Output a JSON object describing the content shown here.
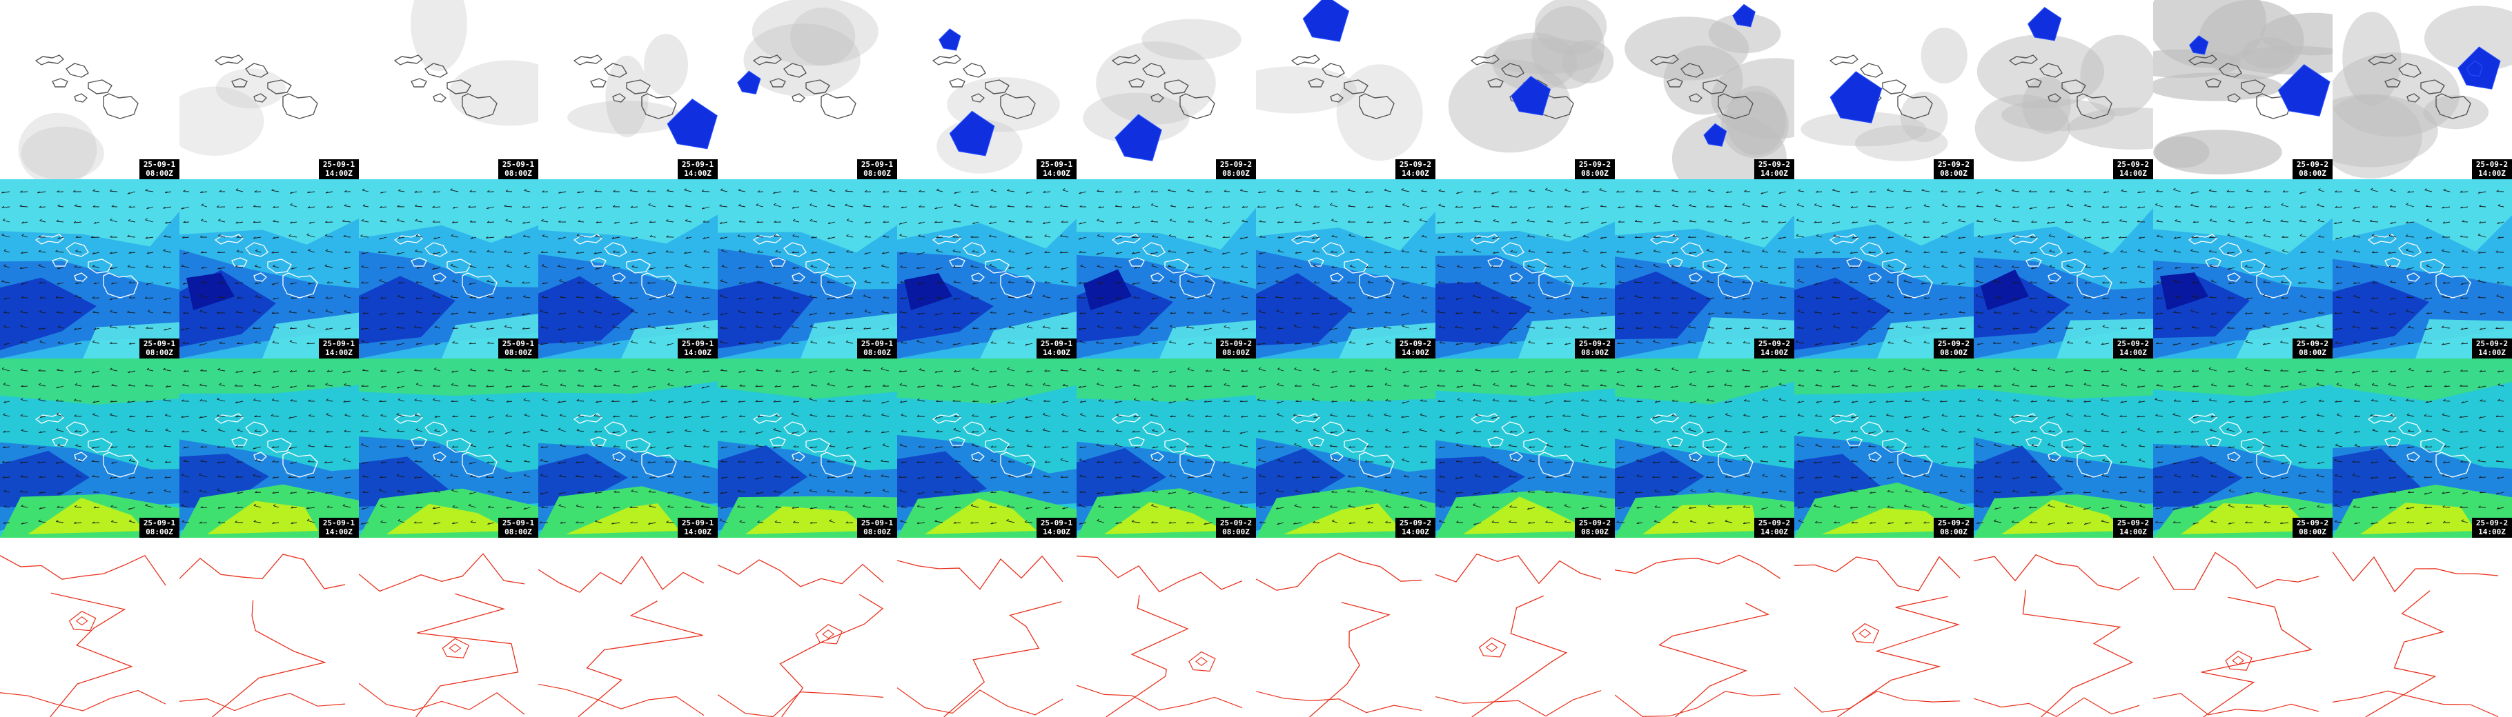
{
  "rows": [
    {
      "id": "precip",
      "palette": {
        "sea": "#ffffff",
        "coast": "#555555",
        "shade": "#bdbdbd",
        "cell": "#1030e0"
      }
    },
    {
      "id": "wind-upper",
      "palette": {
        "base": "#2fb6ea",
        "mid": "#1f7fe0",
        "deep": "#1040c8",
        "dark": "#0818a0",
        "light": "#55e2ea",
        "coast": "#ffffff",
        "arrows": "#1a1a1a"
      }
    },
    {
      "id": "wind-lower",
      "palette": {
        "base": "#27c8d8",
        "mid": "#1f86e0",
        "deep": "#1048c8",
        "green": "#40e070",
        "lime": "#b8f020",
        "coast": "#ffffff",
        "arrows": "#1a1a1a"
      }
    },
    {
      "id": "pressure",
      "palette": {
        "sea": "#ffffff",
        "iso": "#e8301c"
      }
    }
  ],
  "frames": [
    {
      "date": "25-09-1",
      "time": "08:00Z"
    },
    {
      "date": "25-09-1",
      "time": "14:00Z"
    },
    {
      "date": "25-09-1",
      "time": "08:00Z"
    },
    {
      "date": "25-09-1",
      "time": "14:00Z"
    },
    {
      "date": "25-09-1",
      "time": "08:00Z"
    },
    {
      "date": "25-09-1",
      "time": "14:00Z"
    },
    {
      "date": "25-09-2",
      "time": "08:00Z"
    },
    {
      "date": "25-09-2",
      "time": "14:00Z"
    },
    {
      "date": "25-09-2",
      "time": "08:00Z"
    },
    {
      "date": "25-09-2",
      "time": "14:00Z"
    },
    {
      "date": "25-09-2",
      "time": "08:00Z"
    },
    {
      "date": "25-09-2",
      "time": "14:00Z"
    },
    {
      "date": "25-09-2",
      "time": "08:00Z"
    },
    {
      "date": "25-09-2",
      "time": "14:00Z"
    }
  ],
  "precip_cover": [
    0.1,
    0.05,
    0.1,
    0.15,
    0.2,
    0.1,
    0.2,
    0.1,
    0.5,
    0.6,
    0.3,
    0.5,
    0.8,
    0.5
  ],
  "precip_cells": [
    0,
    0,
    0,
    1,
    1,
    2,
    1,
    1,
    1,
    2,
    1,
    1,
    2,
    2
  ],
  "wind_seeds": [
    3,
    7,
    11,
    2,
    5,
    13,
    4,
    9,
    6,
    8,
    12,
    10,
    1,
    14
  ],
  "legend_icons": [
    "coastline-icon",
    "wind-arrow-icon",
    "isobar-icon"
  ]
}
